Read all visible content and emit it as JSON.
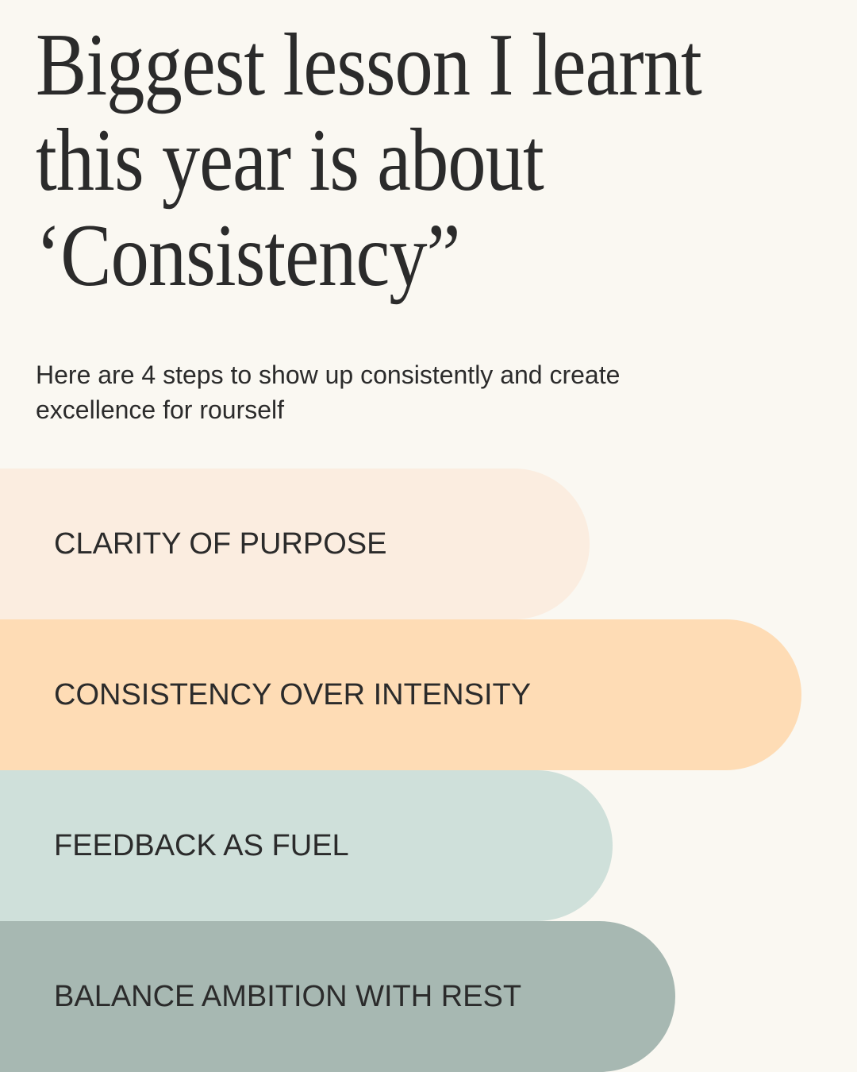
{
  "headline": {
    "lines": [
      "Biggest lesson I learnt",
      "this year is about",
      "‘Consistency”"
    ]
  },
  "subtitle": {
    "lines": [
      "Here are 4 steps to show up consistently and create",
      "excellence for rourself"
    ]
  },
  "steps": [
    {
      "label": "CLARITY OF PURPOSE",
      "color": "#fbede0"
    },
    {
      "label": "CONSISTENCY OVER INTENSITY",
      "color": "#fedcb5"
    },
    {
      "label": "FEEDBACK AS FUEL",
      "color": "#cfe0da"
    },
    {
      "label": "BALANCE AMBITION WITH REST",
      "color": "#a7b8b2"
    }
  ],
  "colors": {
    "background": "#faf8f2",
    "text": "#2b2b2b"
  }
}
